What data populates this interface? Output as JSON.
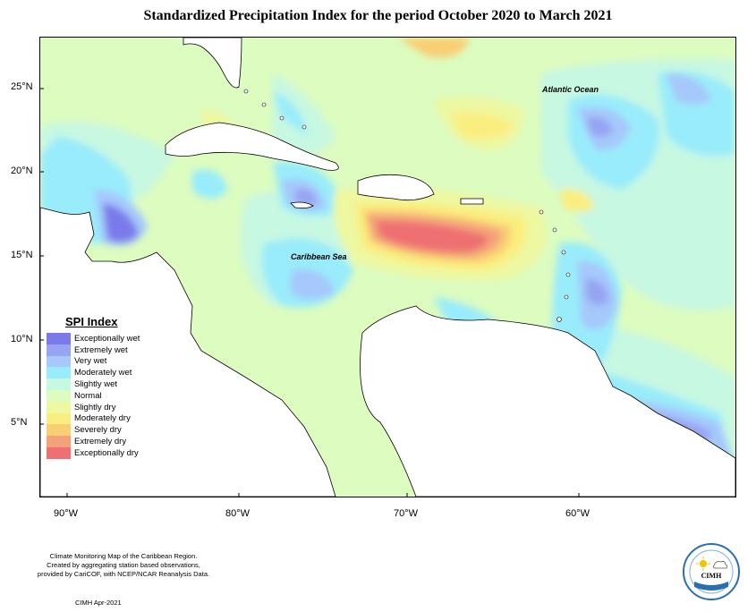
{
  "title": "Standardized Precipitation Index for the period October 2020 to March 2021",
  "map": {
    "latitude_labels": [
      "25°N",
      "20°N",
      "15°N",
      "10°N",
      "5°N"
    ],
    "longitude_labels": [
      "90°W",
      "80°W",
      "70°W",
      "60°W"
    ],
    "place_labels": {
      "atlantic": "Atlantic Ocean",
      "caribbean": "Caribbean Sea"
    }
  },
  "legend": {
    "title": "SPI Index",
    "items": [
      {
        "label": "Exceptionally wet",
        "color": "#7a7aea"
      },
      {
        "label": "Extremely wet",
        "color": "#96a4f2"
      },
      {
        "label": "Very wet",
        "color": "#a6c8fb"
      },
      {
        "label": "Moderately wet",
        "color": "#99ecfb"
      },
      {
        "label": "Slightly wet",
        "color": "#c7f8e2"
      },
      {
        "label": "Normal",
        "color": "#dcfcc0"
      },
      {
        "label": "Slightly dry",
        "color": "#eef8a0"
      },
      {
        "label": "Moderately dry",
        "color": "#fbee80"
      },
      {
        "label": "Severely dry",
        "color": "#f9cf74"
      },
      {
        "label": "Extremely dry",
        "color": "#f4a27a"
      },
      {
        "label": "Exceptionally dry",
        "color": "#ee7072"
      }
    ]
  },
  "footer": {
    "line1": "Climate Monitoring Map of the Caribbean Region.",
    "line2": "Created by aggregating station based observations,",
    "line3": "provided by CariCOF, with NCEP/NCAR Reanalysis Data.",
    "date": "CIMH Apr-2021"
  },
  "logo": {
    "text": "CIMH",
    "icon": "cimh-logo-icon"
  }
}
